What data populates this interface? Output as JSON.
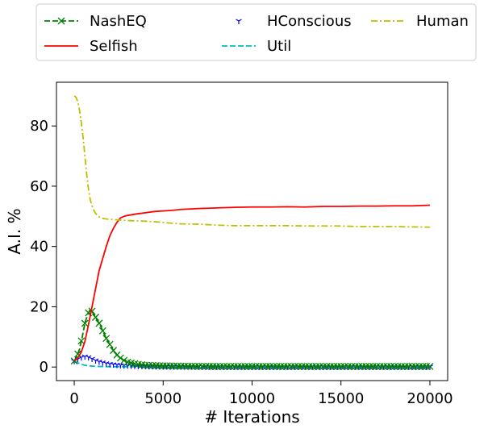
{
  "chart_data": {
    "type": "line",
    "xlabel": "# Iterations",
    "ylabel": "A.I. %",
    "xlim": [
      -1000,
      21000
    ],
    "ylim": [
      -4.5,
      94.5
    ],
    "x_ticks": [
      0,
      5000,
      10000,
      15000,
      20000
    ],
    "x_tick_labels": [
      "0",
      "5000",
      "10000",
      "15000",
      "20000"
    ],
    "y_ticks": [
      0,
      20,
      40,
      60,
      80
    ],
    "y_tick_labels": [
      "0",
      "20",
      "40",
      "60",
      "80"
    ],
    "grid": false,
    "legend_position": "top, above plot, 3 columns",
    "series": [
      {
        "name": "NashEQ",
        "color": "#008000",
        "line_style": "dashed",
        "marker": "x",
        "x": [
          0,
          150,
          300,
          450,
          600,
          750,
          900,
          1000,
          1150,
          1300,
          1450,
          1600,
          1800,
          2000,
          2200,
          2400,
          2600,
          2800,
          3000,
          3300,
          3600,
          4000,
          5000,
          6000,
          8000,
          10000,
          12000,
          14000,
          16000,
          18000,
          20000
        ],
        "values": [
          2.0,
          3.5,
          6.0,
          10.0,
          14.5,
          17.5,
          19.0,
          18.5,
          17.0,
          15.5,
          14.0,
          12.0,
          9.5,
          7.5,
          5.5,
          4.0,
          3.0,
          2.2,
          1.6,
          1.2,
          0.9,
          0.6,
          0.4,
          0.3,
          0.2,
          0.2,
          0.2,
          0.2,
          0.2,
          0.2,
          0.2
        ]
      },
      {
        "name": "Selfish",
        "color": "#ff0000",
        "line_style": "solid",
        "marker": "none",
        "x": [
          0,
          200,
          400,
          600,
          800,
          1000,
          1200,
          1400,
          1600,
          1800,
          2000,
          2200,
          2400,
          2600,
          2800,
          3000,
          3500,
          4000,
          4500,
          5000,
          5500,
          6000,
          7000,
          8000,
          9000,
          10000,
          11000,
          12000,
          13000,
          14000,
          15000,
          16000,
          17000,
          18000,
          19000,
          20000
        ],
        "values": [
          2.0,
          3.0,
          5.0,
          8.5,
          14.0,
          20.0,
          26.0,
          32.0,
          36.0,
          40.0,
          43.5,
          46.0,
          48.0,
          49.5,
          50.0,
          50.3,
          50.8,
          51.2,
          51.6,
          51.8,
          52.0,
          52.3,
          52.6,
          52.8,
          53.0,
          53.1,
          53.1,
          53.2,
          53.1,
          53.3,
          53.3,
          53.4,
          53.4,
          53.5,
          53.5,
          53.7
        ]
      },
      {
        "name": "HConscious",
        "color": "#0000ff",
        "line_style": "none",
        "marker": "tri_down",
        "x": [
          0,
          150,
          300,
          450,
          600,
          750,
          900,
          1050,
          1200,
          1400,
          1600,
          1800,
          2000,
          2300,
          2600,
          3000,
          3500,
          4000,
          5000,
          6000,
          8000,
          10000,
          12000,
          14000,
          16000,
          18000,
          20000
        ],
        "values": [
          2.0,
          2.5,
          3.0,
          3.3,
          3.5,
          3.4,
          3.0,
          2.6,
          2.2,
          1.8,
          1.5,
          1.2,
          1.0,
          0.8,
          0.6,
          0.5,
          0.4,
          0.3,
          0.2,
          0.2,
          0.1,
          0.1,
          0.1,
          0.1,
          0.1,
          0.1,
          0.1
        ]
      },
      {
        "name": "Util",
        "color": "#00bfbf",
        "line_style": "dashed",
        "marker": "none",
        "x": [
          0,
          200,
          400,
          600,
          800,
          1000,
          1300,
          1600,
          2000,
          3000,
          4000,
          6000,
          10000,
          15000,
          20000
        ],
        "values": [
          2.0,
          1.4,
          0.9,
          0.6,
          0.4,
          0.3,
          0.2,
          0.15,
          0.1,
          0.1,
          0.05,
          0.05,
          0.05,
          0.05,
          0.05
        ]
      },
      {
        "name": "Human",
        "color": "#bfbf00",
        "line_style": "dashdot",
        "marker": "none",
        "x": [
          0,
          100,
          200,
          300,
          400,
          500,
          600,
          700,
          800,
          900,
          1000,
          1100,
          1200,
          1300,
          1400,
          1500,
          1700,
          2000,
          2500,
          3000,
          3500,
          4000,
          4500,
          5000,
          5500,
          6000,
          7000,
          8000,
          9000,
          10000,
          11000,
          12000,
          13000,
          14000,
          15000,
          16000,
          17000,
          18000,
          19000,
          20000
        ],
        "values": [
          90.0,
          89.5,
          88.0,
          85.0,
          81.0,
          76.0,
          70.0,
          64.0,
          59.0,
          55.5,
          53.5,
          52.0,
          51.0,
          50.3,
          49.8,
          49.5,
          49.2,
          49.0,
          48.8,
          48.6,
          48.5,
          48.4,
          48.2,
          48.0,
          47.7,
          47.5,
          47.4,
          47.1,
          46.9,
          46.9,
          46.9,
          46.9,
          46.8,
          46.8,
          46.8,
          46.6,
          46.6,
          46.6,
          46.5,
          46.4
        ]
      }
    ]
  }
}
